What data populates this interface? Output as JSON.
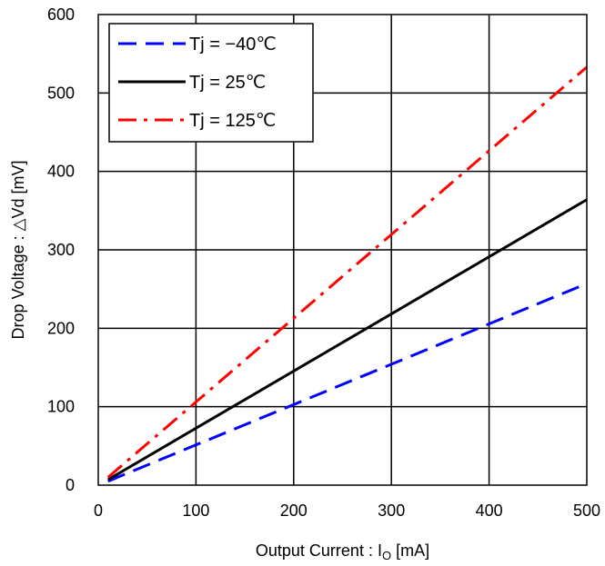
{
  "chart_data": {
    "type": "line",
    "title": "",
    "xlabel": "Output Current : I",
    "xlabel_sub": "O",
    "xlabel_unit": " [mA]",
    "ylabel": "Drop Voltage : △Vd  [mV]",
    "xlim": [
      0,
      500
    ],
    "ylim": [
      0,
      600
    ],
    "xticks": [
      "0",
      "100",
      "200",
      "300",
      "400",
      "500"
    ],
    "yticks": [
      "0",
      "100",
      "200",
      "300",
      "400",
      "500",
      "600"
    ],
    "grid": true,
    "legend_position": "top-left",
    "series": [
      {
        "name": "Tj = −40℃",
        "color": "#0000ff",
        "dash": "dashed",
        "x": [
          10,
          500
        ],
        "y": [
          5,
          257
        ]
      },
      {
        "name": "Tj = 25℃",
        "color": "#000000",
        "dash": "solid",
        "x": [
          10,
          500
        ],
        "y": [
          7,
          364
        ]
      },
      {
        "name": "Tj = 125℃",
        "color": "#ff0000",
        "dash": "dashdot",
        "x": [
          10,
          500
        ],
        "y": [
          10,
          533
        ]
      }
    ]
  }
}
